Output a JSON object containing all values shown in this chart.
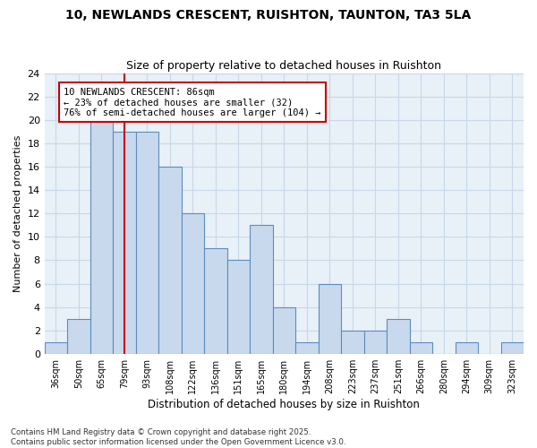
{
  "title": "10, NEWLANDS CRESCENT, RUISHTON, TAUNTON, TA3 5LA",
  "subtitle": "Size of property relative to detached houses in Ruishton",
  "xlabel": "Distribution of detached houses by size in Ruishton",
  "ylabel": "Number of detached properties",
  "categories": [
    "36sqm",
    "50sqm",
    "65sqm",
    "79sqm",
    "93sqm",
    "108sqm",
    "122sqm",
    "136sqm",
    "151sqm",
    "165sqm",
    "180sqm",
    "194sqm",
    "208sqm",
    "223sqm",
    "237sqm",
    "251sqm",
    "266sqm",
    "280sqm",
    "294sqm",
    "309sqm",
    "323sqm"
  ],
  "values": [
    1,
    3,
    20,
    19,
    19,
    16,
    12,
    9,
    8,
    11,
    4,
    1,
    6,
    2,
    2,
    3,
    1,
    0,
    1,
    0,
    1
  ],
  "bar_color": "#c9d9ed",
  "bar_edge_color": "#5b8dc0",
  "red_line_index": 3,
  "annotation_text": "10 NEWLANDS CRESCENT: 86sqm\n← 23% of detached houses are smaller (32)\n76% of semi-detached houses are larger (104) →",
  "annotation_box_color": "#ffffff",
  "annotation_box_edge": "#cc0000",
  "red_line_color": "#cc0000",
  "ylim": [
    0,
    24
  ],
  "yticks": [
    0,
    2,
    4,
    6,
    8,
    10,
    12,
    14,
    16,
    18,
    20,
    22,
    24
  ],
  "grid_color": "#c8d8e8",
  "bg_color": "#e8f0f8",
  "footer": "Contains HM Land Registry data © Crown copyright and database right 2025.\nContains public sector information licensed under the Open Government Licence v3.0.",
  "title_fontsize": 10,
  "subtitle_fontsize": 9,
  "annotation_fontsize": 7.5
}
